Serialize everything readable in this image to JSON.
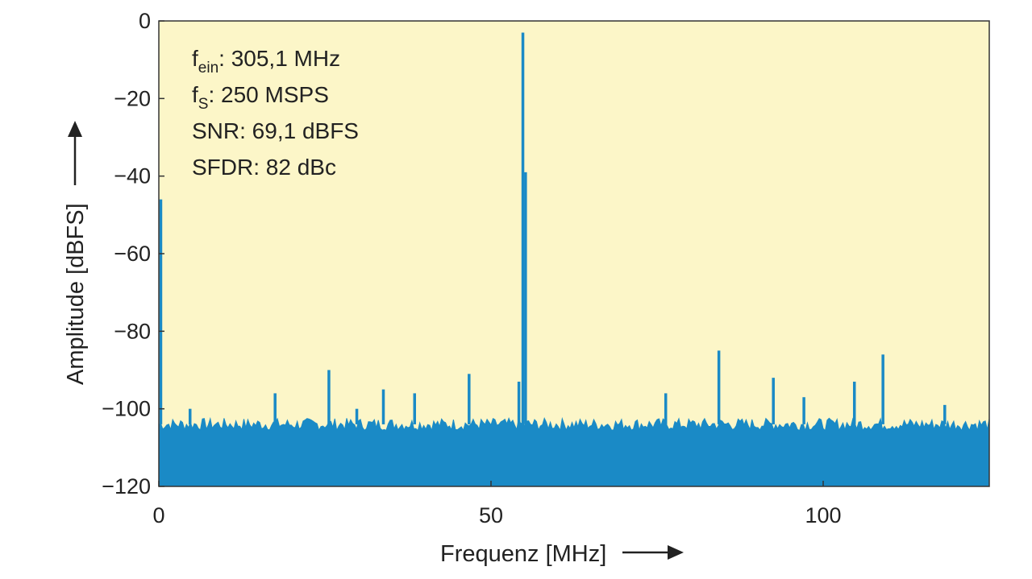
{
  "chart_data": {
    "type": "line",
    "xlabel": "Frequenz [MHz]",
    "ylabel": "Amplitude [dBFS]",
    "xlim": [
      0,
      125
    ],
    "ylim": [
      -120,
      0
    ],
    "x_ticks": [
      "0",
      "50",
      "100"
    ],
    "y_ticks": [
      "0",
      "−20",
      "−40",
      "−60",
      "−80",
      "−100",
      "−120"
    ],
    "annotations": [
      {
        "base": "f",
        "sub": "ein",
        "text": ": 305,1 MHz"
      },
      {
        "base": "f",
        "sub": "S",
        "text": ": 250 MSPS"
      },
      {
        "base": "",
        "sub": "",
        "text": "SNR: 69,1 dBFS"
      },
      {
        "base": "",
        "sub": "",
        "text": "SFDR: 82 dBc"
      }
    ],
    "noise_floor_dbfs": -104,
    "series": [
      {
        "color": "#1a8ac6",
        "spurs": [
          {
            "x": 0.3,
            "y": -46
          },
          {
            "x": 4.7,
            "y": -100
          },
          {
            "x": 17.5,
            "y": -96
          },
          {
            "x": 25.6,
            "y": -90
          },
          {
            "x": 29.8,
            "y": -100
          },
          {
            "x": 33.8,
            "y": -95
          },
          {
            "x": 38.5,
            "y": -96
          },
          {
            "x": 46.7,
            "y": -91
          },
          {
            "x": 54.2,
            "y": -93
          },
          {
            "x": 54.8,
            "y": -3
          },
          {
            "x": 55.2,
            "y": -39
          },
          {
            "x": 76.3,
            "y": -96
          },
          {
            "x": 84.3,
            "y": -85
          },
          {
            "x": 92.5,
            "y": -92
          },
          {
            "x": 97.1,
            "y": -97
          },
          {
            "x": 104.7,
            "y": -93
          },
          {
            "x": 109.0,
            "y": -86
          },
          {
            "x": 118.3,
            "y": -99
          }
        ]
      }
    ],
    "colors": {
      "plot_background": "#fcf6c8",
      "trace": "#1a8ac6"
    }
  }
}
